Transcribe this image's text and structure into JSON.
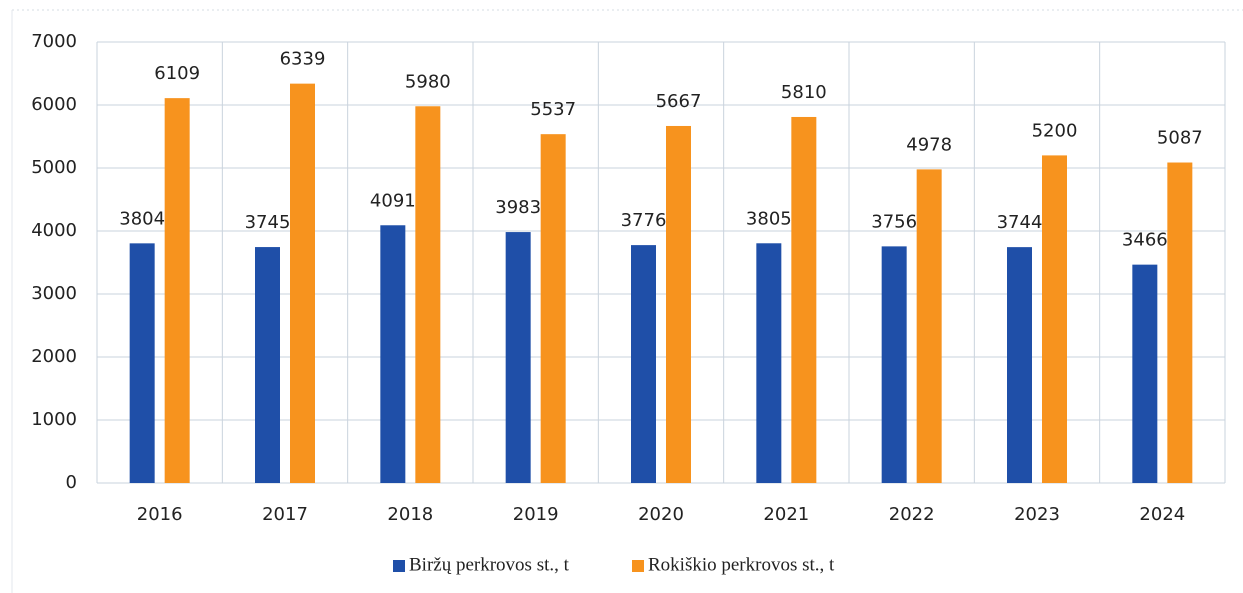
{
  "chart_data": {
    "type": "bar",
    "categories": [
      "2016",
      "2017",
      "2018",
      "2019",
      "2020",
      "2021",
      "2022",
      "2023",
      "2024"
    ],
    "series": [
      {
        "name": "Biržų perkrovos st., t",
        "color": "#1f4fa8",
        "values": [
          3804,
          3745,
          4091,
          3983,
          3776,
          3805,
          3756,
          3744,
          3466
        ]
      },
      {
        "name": "Rokiškio perkrovos st., t",
        "color": "#f7931e",
        "values": [
          6109,
          6339,
          5980,
          5537,
          5667,
          5810,
          4978,
          5200,
          5087
        ]
      }
    ],
    "ylim": [
      0,
      7000
    ],
    "yticks": [
      0,
      1000,
      2000,
      3000,
      4000,
      5000,
      6000,
      7000
    ],
    "grid": true,
    "legend": "bottom"
  }
}
